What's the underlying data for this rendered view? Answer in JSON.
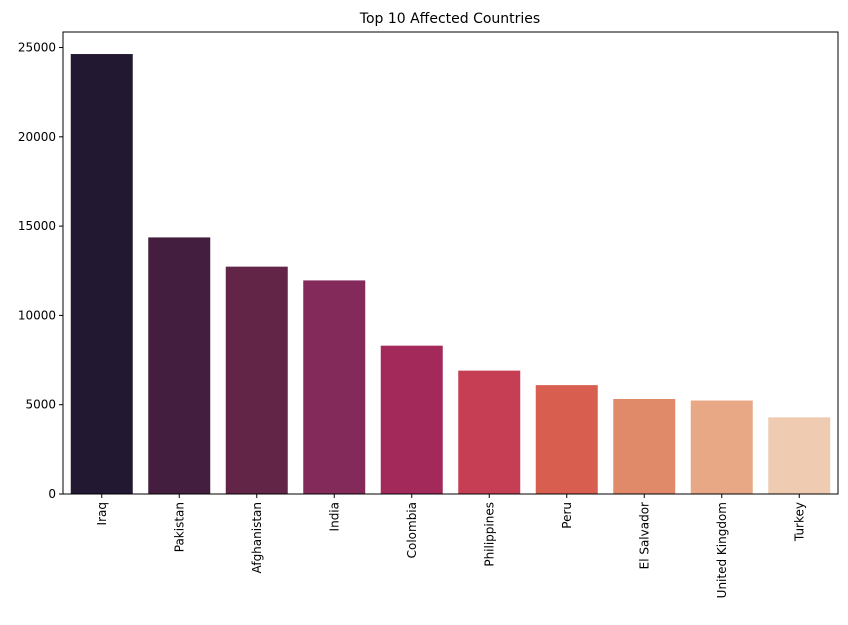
{
  "chart_data": {
    "type": "bar",
    "title": "Top 10 Affected Countries",
    "xlabel": "",
    "ylabel": "",
    "categories": [
      "Iraq",
      "Pakistan",
      "Afghanistan",
      "India",
      "Colombia",
      "Philippines",
      "Peru",
      "El Salvador",
      "United Kingdom",
      "Turkey"
    ],
    "values": [
      24636,
      14368,
      12731,
      11960,
      8306,
      6908,
      6096,
      5320,
      5235,
      4292
    ],
    "ylim": [
      0,
      25870
    ],
    "yticks": [
      0,
      5000,
      10000,
      15000,
      20000,
      25000
    ],
    "ytick_labels": [
      "0",
      "5000",
      "10000",
      "15000",
      "20000",
      "25000"
    ],
    "grid": false,
    "legend": "none",
    "x_tick_rotation": 90,
    "colors": [
      "#221831",
      "#441e3e",
      "#622548",
      "#832a5a",
      "#a3295a",
      "#c63e53",
      "#d85f50",
      "#e18a6a",
      "#e8a886",
      "#efcbb2"
    ]
  }
}
